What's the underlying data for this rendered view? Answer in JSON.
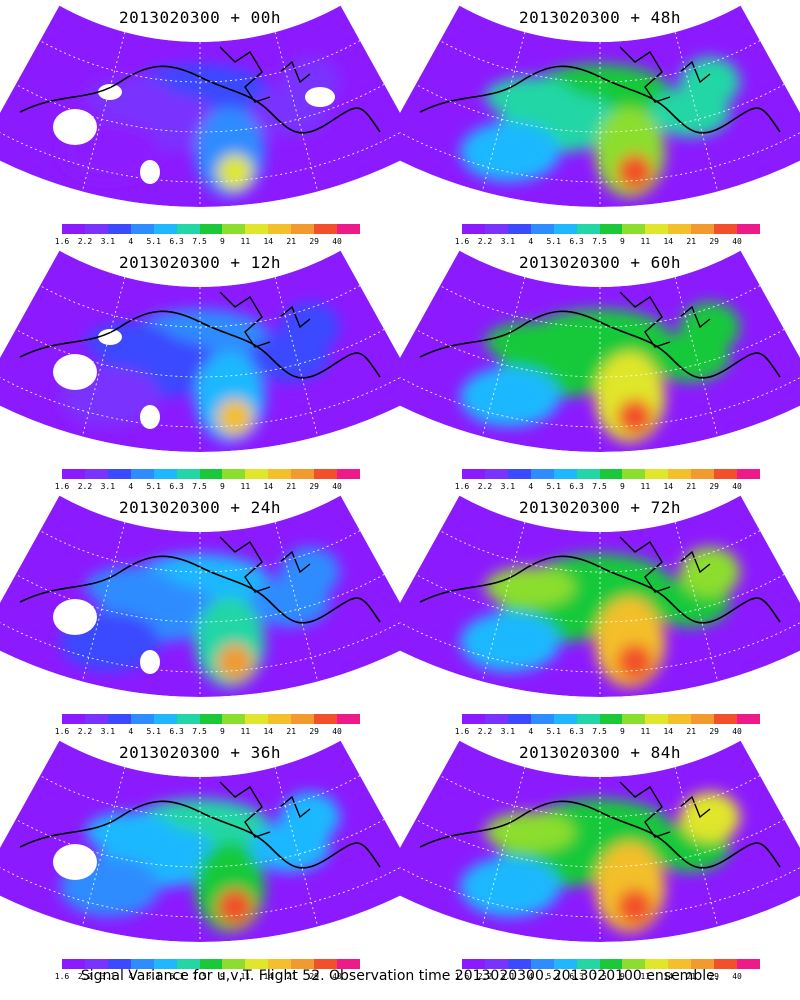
{
  "panels": [
    {
      "title": "2013020300 + 00h",
      "col": 0,
      "row": 0
    },
    {
      "title": "2013020300 + 48h",
      "col": 1,
      "row": 0
    },
    {
      "title": "2013020300 + 12h",
      "col": 0,
      "row": 1
    },
    {
      "title": "2013020300 + 60h",
      "col": 1,
      "row": 1
    },
    {
      "title": "2013020300 + 24h",
      "col": 0,
      "row": 2
    },
    {
      "title": "2013020300 + 72h",
      "col": 1,
      "row": 2
    },
    {
      "title": "2013020300 + 36h",
      "col": 0,
      "row": 3
    },
    {
      "title": "2013020300 + 84h",
      "col": 1,
      "row": 3
    }
  ],
  "colorbar": {
    "labels": [
      "1.6",
      "2.2",
      "3.1",
      "4",
      "5.1",
      "6.3",
      "7.5",
      "9",
      "11",
      "14",
      "21",
      "29",
      "40"
    ],
    "colors": [
      "#8c1aff",
      "#7a33ff",
      "#3b49ff",
      "#2f8cff",
      "#1fb8ff",
      "#22d6a6",
      "#19c93a",
      "#8cde2d",
      "#e0e62b",
      "#f3bf2a",
      "#f39a2e",
      "#f2502a",
      "#ee1a8a"
    ]
  },
  "caption": "Signal Variance for u,v,T. Flight 52. Observation time 2013020300. 2013020100 ensemble."
}
